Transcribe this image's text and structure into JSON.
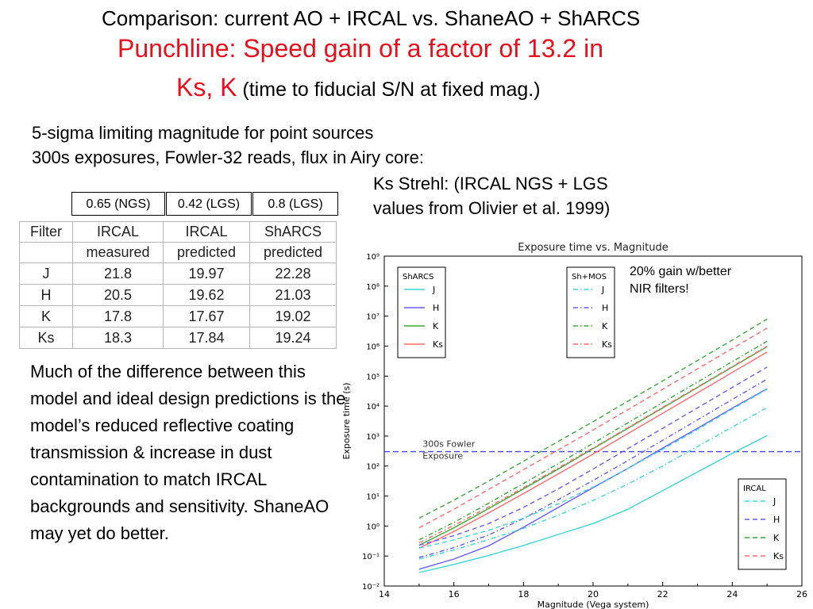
{
  "title": "Comparison: current AO + IRCAL vs. ShaneAO + ShARCS",
  "punchline": {
    "line1": "Punchline: Speed gain of a factor of 13.2 in",
    "line2": "Ks, K",
    "note": " (time to fiducial S/N at fixed mag.)"
  },
  "subtitle": {
    "line1": "5-sigma limiting magnitude for point sources",
    "line2": "300s exposures, Fowler-32 reads, flux in Airy core:"
  },
  "strehl_note": "Ks Strehl: (IRCAL NGS + LGS values from Olivier et al. 1999)",
  "strehl_boxes": [
    "0.65 (NGS)",
    "0.42 (LGS)",
    "0.8 (LGS)"
  ],
  "table": {
    "header_row1": [
      "Filter",
      "IRCAL",
      "IRCAL",
      "ShARCS"
    ],
    "header_row2": [
      "",
      "measured",
      "predicted",
      "predicted"
    ],
    "rows": [
      [
        "J",
        "21.8",
        "19.97",
        "22.28"
      ],
      [
        "H",
        "20.5",
        "19.62",
        "21.03"
      ],
      [
        "K",
        "17.8",
        "17.67",
        "19.02"
      ],
      [
        "Ks",
        "18.3",
        "17.84",
        "19.24"
      ]
    ]
  },
  "paragraph": "Much of the difference between this model and ideal design predictions is the model’s reduced reflective coating transmission & increase in dust contamination to match IRCAL backgrounds and sensitivity.  ShaneAO may yet do better.",
  "gain_note": {
    "line1": "20% gain w/better",
    "line2": "NIR filters!"
  },
  "chart_data": {
    "type": "line",
    "title": "Exposure time vs. Magnitude",
    "xlabel": "Magnitude (Vega system)",
    "ylabel": "Exposure time (s)",
    "xlim": [
      14,
      26
    ],
    "ylim_log10": [
      -2,
      9
    ],
    "log_y": true,
    "x_ticks": [
      "14",
      "16",
      "18",
      "20",
      "22",
      "24",
      "26"
    ],
    "y_ticks": [
      "10⁻²",
      "10⁻¹",
      "10⁰",
      "10¹",
      "10²",
      "10³",
      "10⁴",
      "10⁵",
      "10⁶",
      "10⁷",
      "10⁸",
      "10⁹"
    ],
    "colors": {
      "J": "#3dd6d6",
      "H": "#6a5cff",
      "K": "#3aa83a",
      "Ks": "#ff6b6b",
      "fowler": "#4444ee"
    },
    "reference_line": {
      "label_line1": "300s Fowler",
      "label_line2": "Exposure",
      "y_log10": 2.48
    },
    "legend_sharcs": {
      "title": "ShARCS",
      "entries": [
        "J",
        "H",
        "K",
        "Ks"
      ],
      "style": "solid",
      "position": "top-left"
    },
    "legend_shmos": {
      "title": "Sh+MOS",
      "entries": [
        "J",
        "H",
        "K",
        "Ks"
      ],
      "style": "dash-dot",
      "position": "top-center"
    },
    "legend_ircal": {
      "title": "IRCAL",
      "entries": [
        "J",
        "H",
        "K",
        "Ks"
      ],
      "style": "dashed",
      "position": "bottom-right"
    },
    "series": [
      {
        "name": "J",
        "group": "ShARCS",
        "x": [
          15,
          16,
          17,
          18,
          19,
          20,
          21,
          22,
          23,
          24,
          25
        ],
        "log10_y": [
          -1.55,
          -1.28,
          -0.98,
          -0.65,
          -0.28,
          0.08,
          0.56,
          1.18,
          1.8,
          2.42,
          3.02
        ]
      },
      {
        "name": "H",
        "group": "ShARCS",
        "x": [
          15,
          16,
          17,
          18,
          19,
          20,
          21,
          22,
          23,
          24,
          25
        ],
        "log10_y": [
          -1.44,
          -1.1,
          -0.66,
          -0.04,
          0.62,
          1.28,
          1.92,
          2.6,
          3.26,
          3.93,
          4.58
        ]
      },
      {
        "name": "K",
        "group": "ShARCS",
        "x": [
          15,
          16,
          17,
          18,
          19,
          20,
          21,
          22,
          23,
          24,
          25
        ],
        "log10_y": [
          -0.64,
          -0.06,
          0.58,
          1.24,
          1.9,
          2.58,
          3.26,
          3.94,
          4.62,
          5.3,
          5.98
        ]
      },
      {
        "name": "Ks",
        "group": "ShARCS",
        "x": [
          15,
          16,
          17,
          18,
          19,
          20,
          21,
          22,
          23,
          24,
          25
        ],
        "log10_y": [
          -0.74,
          -0.18,
          0.44,
          1.08,
          1.74,
          2.4,
          3.08,
          3.76,
          4.44,
          5.12,
          5.8
        ]
      },
      {
        "name": "J",
        "group": "Sh+MOS",
        "x": [
          15,
          16,
          17,
          18,
          19,
          20,
          21,
          22,
          23,
          24,
          25
        ],
        "log10_y": [
          -1.1,
          -0.8,
          -0.45,
          -0.08,
          0.36,
          0.85,
          1.4,
          2.0,
          2.65,
          3.3,
          3.95
        ]
      },
      {
        "name": "H",
        "group": "Sh+MOS",
        "x": [
          15,
          16,
          17,
          18,
          19,
          20,
          21,
          22,
          23,
          24,
          25
        ],
        "log10_y": [
          -1.05,
          -0.72,
          -0.3,
          0.25,
          0.88,
          1.52,
          2.18,
          2.86,
          3.54,
          4.22,
          4.9
        ]
      },
      {
        "name": "K",
        "group": "Sh+MOS",
        "x": [
          15,
          16,
          17,
          18,
          19,
          20,
          21,
          22,
          23,
          24,
          25
        ],
        "log10_y": [
          -0.46,
          0.12,
          0.76,
          1.42,
          2.08,
          2.76,
          3.44,
          4.12,
          4.8,
          5.48,
          6.16
        ]
      },
      {
        "name": "Ks",
        "group": "Sh+MOS",
        "x": [
          15,
          16,
          17,
          18,
          19,
          20,
          21,
          22,
          23,
          24,
          25
        ],
        "log10_y": [
          -0.56,
          0.02,
          0.64,
          1.28,
          1.94,
          2.6,
          3.28,
          3.96,
          4.64,
          5.32,
          6.0
        ]
      },
      {
        "name": "J",
        "group": "IRCAL",
        "x": [
          15,
          16,
          17,
          18,
          19,
          20,
          21,
          22,
          23,
          24,
          25
        ],
        "log10_y": [
          -0.74,
          -0.46,
          -0.14,
          0.26,
          0.74,
          1.3,
          1.92,
          2.56,
          3.22,
          3.9,
          4.56
        ]
      },
      {
        "name": "H",
        "group": "IRCAL",
        "x": [
          15,
          16,
          17,
          18,
          19,
          20,
          21,
          22,
          23,
          24,
          25
        ],
        "log10_y": [
          -0.64,
          -0.32,
          0.08,
          0.62,
          1.24,
          1.9,
          2.58,
          3.26,
          3.94,
          4.62,
          5.3
        ]
      },
      {
        "name": "K",
        "group": "IRCAL",
        "x": [
          15,
          16,
          17,
          18,
          19,
          20,
          21,
          22,
          23,
          24,
          25
        ],
        "log10_y": [
          0.26,
          0.86,
          1.5,
          2.16,
          2.82,
          3.48,
          4.16,
          4.84,
          5.52,
          6.2,
          6.9
        ]
      },
      {
        "name": "Ks",
        "group": "IRCAL",
        "x": [
          15,
          16,
          17,
          18,
          19,
          20,
          21,
          22,
          23,
          24,
          25
        ],
        "log10_y": [
          -0.06,
          0.56,
          1.22,
          1.88,
          2.54,
          3.2,
          3.88,
          4.56,
          5.24,
          5.92,
          6.6
        ]
      }
    ]
  }
}
